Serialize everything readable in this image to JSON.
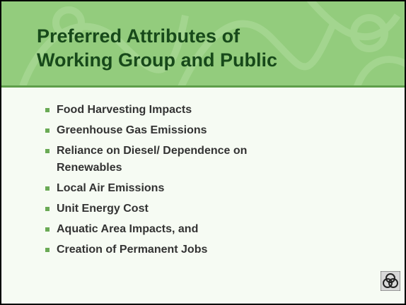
{
  "slide": {
    "title": [
      "Preferred Attributes of",
      "Working Group and Public"
    ],
    "bullets": [
      "Food Harvesting Impacts",
      "Greenhouse Gas Emissions",
      "Reliance on Diesel/ Dependence on Renewables",
      "Local Air Emissions",
      "Unit Energy Cost",
      "Aquatic Area Impacts, and",
      "Creation of Permanent Jobs"
    ]
  }
}
